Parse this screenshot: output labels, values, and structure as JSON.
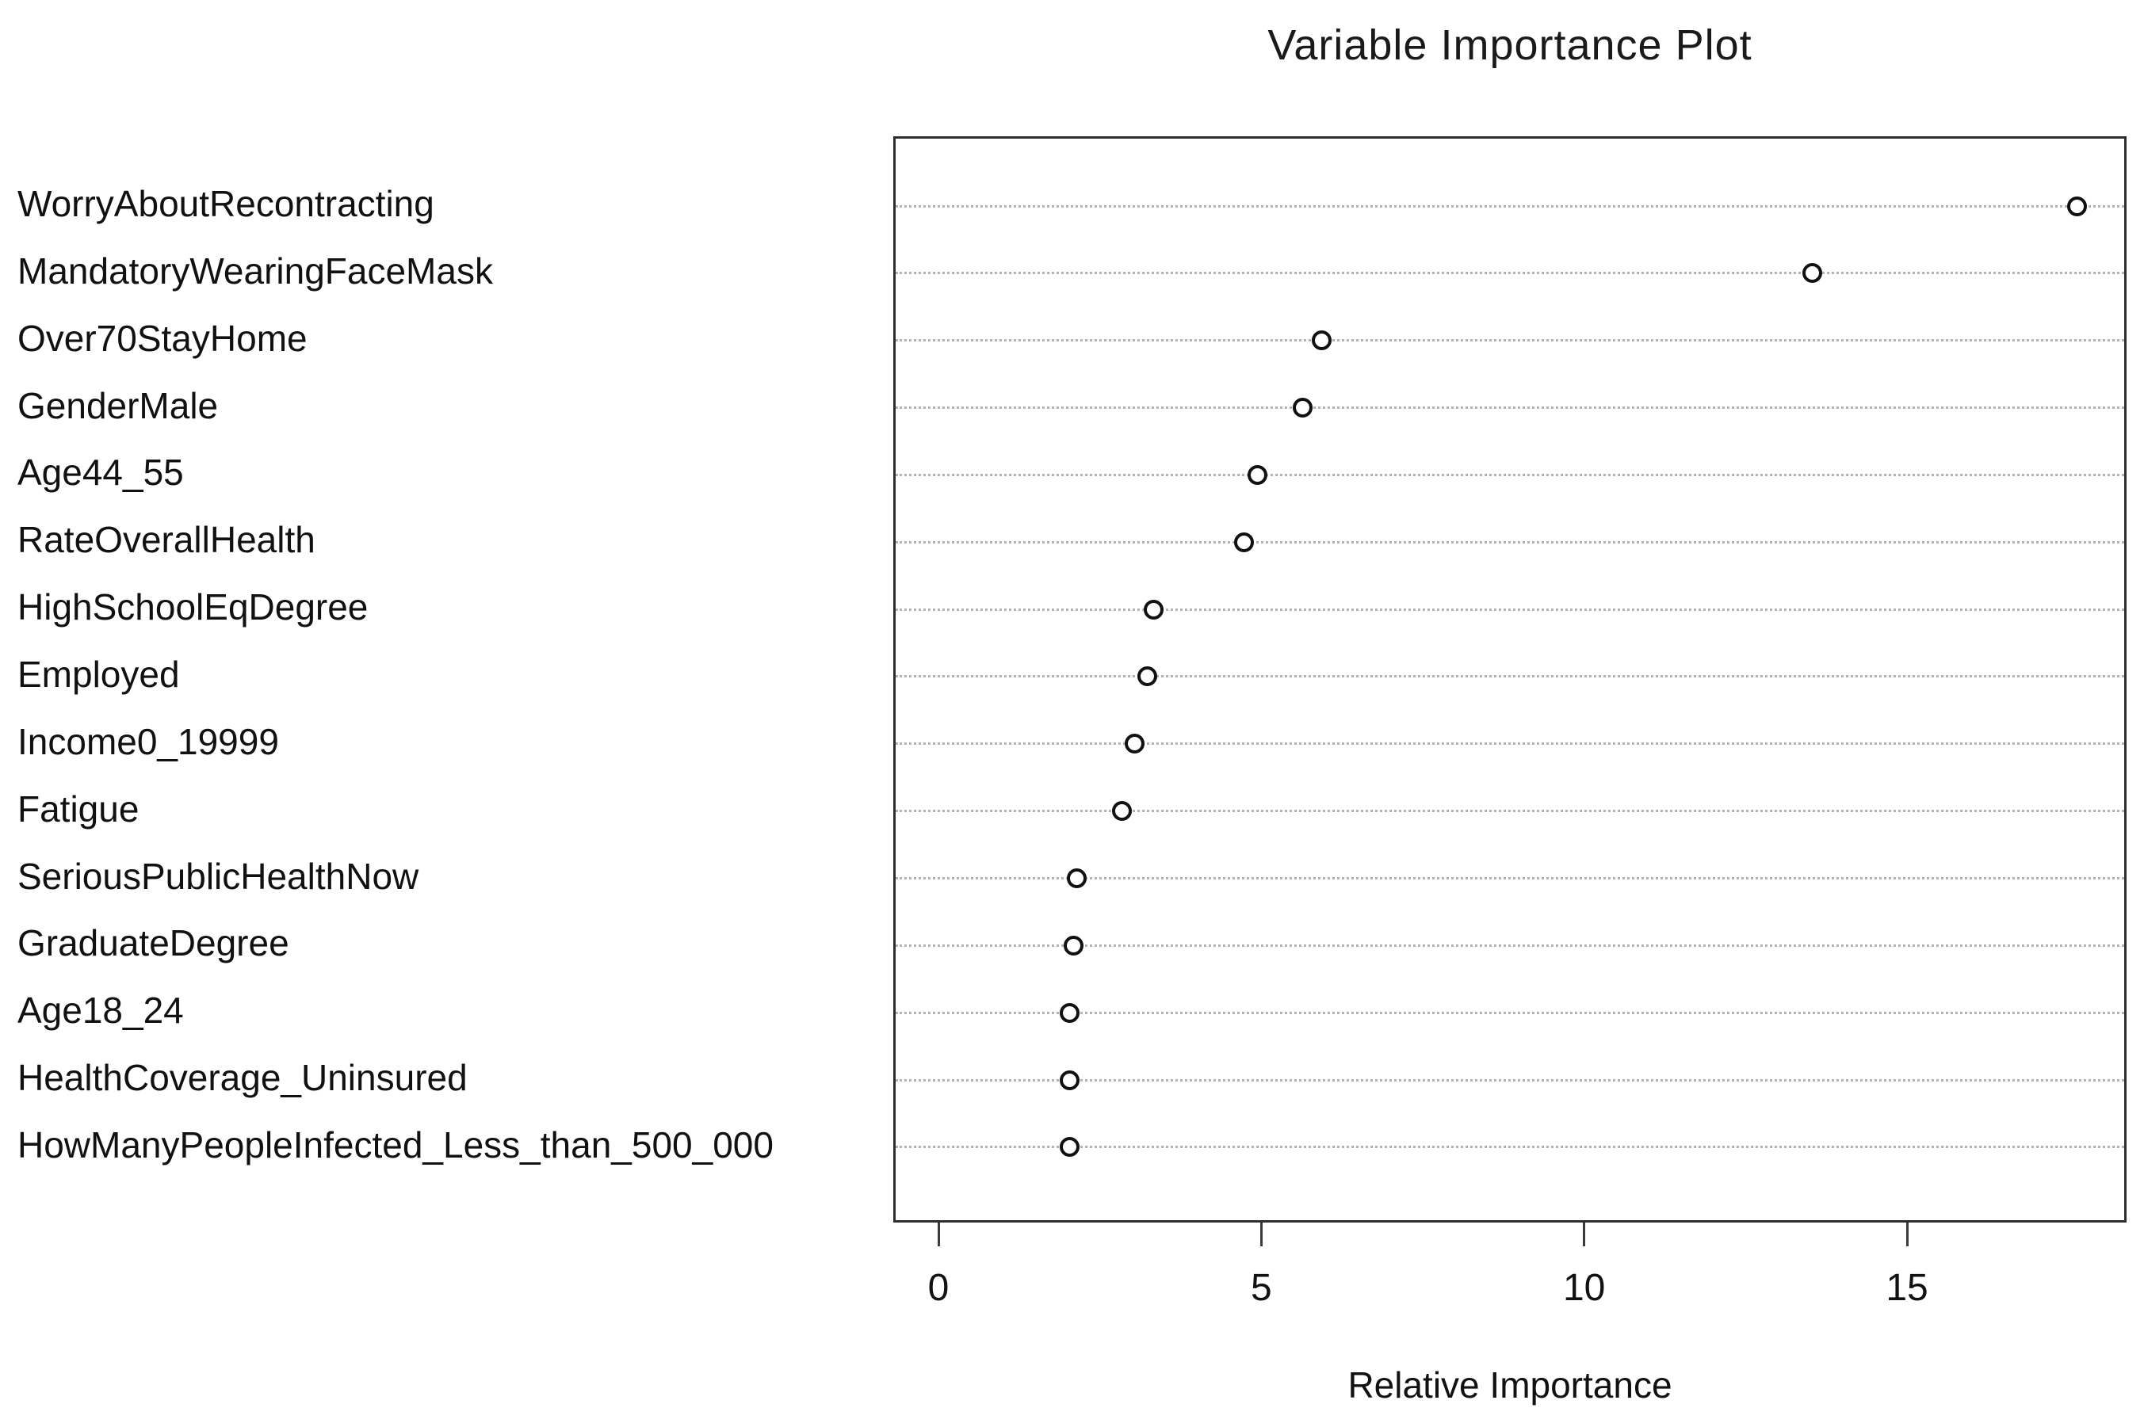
{
  "chart_data": {
    "type": "scatter",
    "variant": "dot-chart-horizontal",
    "title": "Variable Importance Plot",
    "xlabel": "Relative Importance",
    "ylabel": "",
    "categories": [
      "WorryAboutRecontracting",
      "MandatoryWearingFaceMask",
      "Over70StayHome",
      "GenderMale",
      "Age44_55",
      "RateOverallHealth",
      "HighSchoolEqDegree",
      "Employed",
      "Income0_19999",
      "Fatigue",
      "SeriousPublicHealthNow",
      "GraduateDegree",
      "Age18_24",
      "HealthCoverage_Uninsured",
      "HowManyPeopleInfected_Less_than_500_000"
    ],
    "values": [
      17.6,
      13.5,
      5.9,
      5.6,
      4.9,
      4.7,
      3.3,
      3.2,
      3.0,
      2.8,
      2.1,
      2.05,
      2.0,
      2.0,
      2.0
    ],
    "x_ticks": [
      "0",
      "5",
      "10",
      "15"
    ],
    "x_tick_values": [
      0,
      5,
      10,
      15
    ],
    "xlim": [
      -0.7,
      18.4
    ],
    "grid": "horizontal-dotted",
    "legend": "none",
    "marker": "open-circle",
    "colors": {
      "marker_stroke": "#111111",
      "marker_fill": "#ffffff",
      "gridline": "#b3b3b3",
      "box_border": "#2e2e2e",
      "text": "#111111"
    }
  }
}
